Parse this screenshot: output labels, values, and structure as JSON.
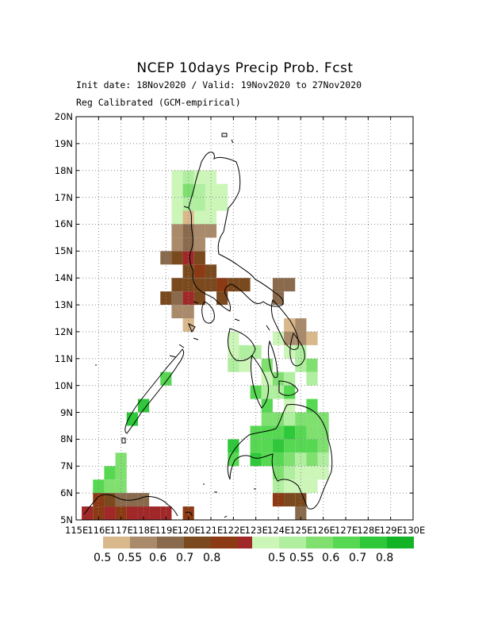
{
  "title": "NCEP 10days Precip Prob. Fcst",
  "init_line": "Init date: 18Nov2020 / Valid: 19Nov2020 to 27Nov2020",
  "calib_line": "Reg Calibrated (GCM-empirical)",
  "y_labels": [
    "20N",
    "19N",
    "18N",
    "17N",
    "16N",
    "15N",
    "14N",
    "13N",
    "12N",
    "11N",
    "10N",
    "9N",
    "8N",
    "7N",
    "6N",
    "5N"
  ],
  "x_labels": [
    "115E",
    "116E",
    "117E",
    "118E",
    "119E",
    "120E",
    "121E",
    "122E",
    "123E",
    "124E",
    "125E",
    "126E",
    "127E",
    "128E",
    "129E",
    "130E"
  ],
  "x_range": [
    115,
    130
  ],
  "y_range": [
    5,
    20
  ],
  "grid": "dotted",
  "dry_legend": {
    "colors": [
      "#d9b88c",
      "#a98a6a",
      "#8a6a4c",
      "#7a4a1e",
      "#8b3a14",
      "#a02828"
    ],
    "labels": [
      "0.5",
      "0.55",
      "0.6",
      "0.7",
      "0.8"
    ]
  },
  "wet_legend": {
    "colors": [
      "#ccf5b8",
      "#b0eea0",
      "#7fe070",
      "#56d852",
      "#2ec83a",
      "#12b426"
    ],
    "labels": [
      "0.5",
      "0.55",
      "0.6",
      "0.7",
      "0.8"
    ]
  },
  "cells": [
    {
      "lon": 119.5,
      "lat": 17.75,
      "cat": "wet",
      "level": 1
    },
    {
      "lon": 120.0,
      "lat": 17.75,
      "cat": "wet",
      "level": 2
    },
    {
      "lon": 120.5,
      "lat": 17.75,
      "cat": "wet",
      "level": 1
    },
    {
      "lon": 121.0,
      "lat": 17.75,
      "cat": "wet",
      "level": 1
    },
    {
      "lon": 119.5,
      "lat": 17.25,
      "cat": "wet",
      "level": 1
    },
    {
      "lon": 120.0,
      "lat": 17.25,
      "cat": "wet",
      "level": 3
    },
    {
      "lon": 120.5,
      "lat": 17.25,
      "cat": "wet",
      "level": 2
    },
    {
      "lon": 121.0,
      "lat": 17.25,
      "cat": "wet",
      "level": 1
    },
    {
      "lon": 121.5,
      "lat": 17.25,
      "cat": "wet",
      "level": 1
    },
    {
      "lon": 119.5,
      "lat": 16.75,
      "cat": "wet",
      "level": 1
    },
    {
      "lon": 120.0,
      "lat": 16.75,
      "cat": "wet",
      "level": 2
    },
    {
      "lon": 120.5,
      "lat": 16.75,
      "cat": "wet",
      "level": 2
    },
    {
      "lon": 121.0,
      "lat": 16.75,
      "cat": "wet",
      "level": 1
    },
    {
      "lon": 121.5,
      "lat": 16.75,
      "cat": "wet",
      "level": 1
    },
    {
      "lon": 119.5,
      "lat": 16.25,
      "cat": "wet",
      "level": 1
    },
    {
      "lon": 120.0,
      "lat": 16.25,
      "cat": "dry",
      "level": 1
    },
    {
      "lon": 120.5,
      "lat": 16.25,
      "cat": "wet",
      "level": 1
    },
    {
      "lon": 121.0,
      "lat": 16.25,
      "cat": "wet",
      "level": 1
    },
    {
      "lon": 119.5,
      "lat": 15.75,
      "cat": "dry",
      "level": 2
    },
    {
      "lon": 120.0,
      "lat": 15.75,
      "cat": "dry",
      "level": 3
    },
    {
      "lon": 120.5,
      "lat": 15.75,
      "cat": "dry",
      "level": 2
    },
    {
      "lon": 121.0,
      "lat": 15.75,
      "cat": "dry",
      "level": 2
    },
    {
      "lon": 119.5,
      "lat": 15.25,
      "cat": "dry",
      "level": 2
    },
    {
      "lon": 120.0,
      "lat": 15.25,
      "cat": "dry",
      "level": 3
    },
    {
      "lon": 120.5,
      "lat": 15.25,
      "cat": "dry",
      "level": 2
    },
    {
      "lon": 119.0,
      "lat": 14.75,
      "cat": "dry",
      "level": 3
    },
    {
      "lon": 119.5,
      "lat": 14.75,
      "cat": "dry",
      "level": 4
    },
    {
      "lon": 120.0,
      "lat": 14.75,
      "cat": "dry",
      "level": 6
    },
    {
      "lon": 120.5,
      "lat": 14.75,
      "cat": "dry",
      "level": 4
    },
    {
      "lon": 120.0,
      "lat": 14.25,
      "cat": "dry",
      "level": 4
    },
    {
      "lon": 120.5,
      "lat": 14.25,
      "cat": "dry",
      "level": 5
    },
    {
      "lon": 121.0,
      "lat": 14.25,
      "cat": "dry",
      "level": 4
    },
    {
      "lon": 119.5,
      "lat": 13.75,
      "cat": "dry",
      "level": 4
    },
    {
      "lon": 120.0,
      "lat": 13.75,
      "cat": "dry",
      "level": 4
    },
    {
      "lon": 120.5,
      "lat": 13.75,
      "cat": "dry",
      "level": 4
    },
    {
      "lon": 121.0,
      "lat": 13.75,
      "cat": "dry",
      "level": 4
    },
    {
      "lon": 121.5,
      "lat": 13.75,
      "cat": "dry",
      "level": 5
    },
    {
      "lon": 122.0,
      "lat": 13.75,
      "cat": "dry",
      "level": 4
    },
    {
      "lon": 122.5,
      "lat": 13.75,
      "cat": "dry",
      "level": 4
    },
    {
      "lon": 119.0,
      "lat": 13.25,
      "cat": "dry",
      "level": 4
    },
    {
      "lon": 119.5,
      "lat": 13.25,
      "cat": "dry",
      "level": 3
    },
    {
      "lon": 120.0,
      "lat": 13.25,
      "cat": "dry",
      "level": 6
    },
    {
      "lon": 120.5,
      "lat": 13.25,
      "cat": "dry",
      "level": 4
    },
    {
      "lon": 121.5,
      "lat": 13.25,
      "cat": "dry",
      "level": 4
    },
    {
      "lon": 119.5,
      "lat": 12.75,
      "cat": "dry",
      "level": 2
    },
    {
      "lon": 120.0,
      "lat": 12.75,
      "cat": "dry",
      "level": 2
    },
    {
      "lon": 120.0,
      "lat": 12.25,
      "cat": "dry",
      "level": 1
    },
    {
      "lon": 124.0,
      "lat": 13.75,
      "cat": "dry",
      "level": 3
    },
    {
      "lon": 124.5,
      "lat": 13.75,
      "cat": "dry",
      "level": 3
    },
    {
      "lon": 124.0,
      "lat": 13.25,
      "cat": "dry",
      "level": 3
    },
    {
      "lon": 124.5,
      "lat": 12.25,
      "cat": "dry",
      "level": 1
    },
    {
      "lon": 125.0,
      "lat": 12.25,
      "cat": "dry",
      "level": 2
    },
    {
      "lon": 124.5,
      "lat": 11.75,
      "cat": "dry",
      "level": 2
    },
    {
      "lon": 125.0,
      "lat": 11.75,
      "cat": "dry",
      "level": 2
    },
    {
      "lon": 125.5,
      "lat": 11.75,
      "cat": "dry",
      "level": 1
    },
    {
      "lon": 122.0,
      "lat": 11.75,
      "cat": "wet",
      "level": 1
    },
    {
      "lon": 124.0,
      "lat": 11.75,
      "cat": "wet",
      "level": 1
    },
    {
      "lon": 122.0,
      "lat": 11.25,
      "cat": "wet",
      "level": 1
    },
    {
      "lon": 122.5,
      "lat": 11.25,
      "cat": "wet",
      "level": 2
    },
    {
      "lon": 123.0,
      "lat": 11.25,
      "cat": "wet",
      "level": 2
    },
    {
      "lon": 124.5,
      "lat": 11.25,
      "cat": "wet",
      "level": 1
    },
    {
      "lon": 125.0,
      "lat": 11.25,
      "cat": "wet",
      "level": 2
    },
    {
      "lon": 122.0,
      "lat": 10.75,
      "cat": "wet",
      "level": 2
    },
    {
      "lon": 122.5,
      "lat": 10.75,
      "cat": "wet",
      "level": 1
    },
    {
      "lon": 123.5,
      "lat": 10.75,
      "cat": "wet",
      "level": 3
    },
    {
      "lon": 125.0,
      "lat": 10.75,
      "cat": "wet",
      "level": 2
    },
    {
      "lon": 125.5,
      "lat": 10.75,
      "cat": "wet",
      "level": 3
    },
    {
      "lon": 123.5,
      "lat": 10.25,
      "cat": "wet",
      "level": 1
    },
    {
      "lon": 124.0,
      "lat": 10.25,
      "cat": "wet",
      "level": 3
    },
    {
      "lon": 124.5,
      "lat": 10.25,
      "cat": "wet",
      "level": 2
    },
    {
      "lon": 125.5,
      "lat": 10.25,
      "cat": "wet",
      "level": 2
    },
    {
      "lon": 123.0,
      "lat": 9.75,
      "cat": "wet",
      "level": 4
    },
    {
      "lon": 123.5,
      "lat": 9.75,
      "cat": "wet",
      "level": 2
    },
    {
      "lon": 124.0,
      "lat": 9.75,
      "cat": "wet",
      "level": 2
    },
    {
      "lon": 124.5,
      "lat": 9.75,
      "cat": "wet",
      "level": 4
    },
    {
      "lon": 123.5,
      "lat": 9.25,
      "cat": "wet",
      "level": 4
    },
    {
      "lon": 124.5,
      "lat": 9.25,
      "cat": "wet",
      "level": 1
    },
    {
      "lon": 125.5,
      "lat": 9.25,
      "cat": "wet",
      "level": 4
    },
    {
      "lon": 123.5,
      "lat": 8.75,
      "cat": "wet",
      "level": 3
    },
    {
      "lon": 124.0,
      "lat": 8.75,
      "cat": "wet",
      "level": 3
    },
    {
      "lon": 124.5,
      "lat": 8.75,
      "cat": "wet",
      "level": 2
    },
    {
      "lon": 125.0,
      "lat": 8.75,
      "cat": "wet",
      "level": 3
    },
    {
      "lon": 125.5,
      "lat": 8.75,
      "cat": "wet",
      "level": 3
    },
    {
      "lon": 126.0,
      "lat": 8.75,
      "cat": "wet",
      "level": 3
    },
    {
      "lon": 123.0,
      "lat": 8.25,
      "cat": "wet",
      "level": 4
    },
    {
      "lon": 123.5,
      "lat": 8.25,
      "cat": "wet",
      "level": 4
    },
    {
      "lon": 124.0,
      "lat": 8.25,
      "cat": "wet",
      "level": 4
    },
    {
      "lon": 124.5,
      "lat": 8.25,
      "cat": "wet",
      "level": 5
    },
    {
      "lon": 125.0,
      "lat": 8.25,
      "cat": "wet",
      "level": 4
    },
    {
      "lon": 125.5,
      "lat": 8.25,
      "cat": "wet",
      "level": 3
    },
    {
      "lon": 126.0,
      "lat": 8.25,
      "cat": "wet",
      "level": 3
    },
    {
      "lon": 122.0,
      "lat": 7.75,
      "cat": "wet",
      "level": 5
    },
    {
      "lon": 123.0,
      "lat": 7.75,
      "cat": "wet",
      "level": 4
    },
    {
      "lon": 123.5,
      "lat": 7.75,
      "cat": "wet",
      "level": 4
    },
    {
      "lon": 124.0,
      "lat": 7.75,
      "cat": "wet",
      "level": 5
    },
    {
      "lon": 124.5,
      "lat": 7.75,
      "cat": "wet",
      "level": 4
    },
    {
      "lon": 125.0,
      "lat": 7.75,
      "cat": "wet",
      "level": 4
    },
    {
      "lon": 125.5,
      "lat": 7.75,
      "cat": "wet",
      "level": 4
    },
    {
      "lon": 126.0,
      "lat": 7.75,
      "cat": "wet",
      "level": 3
    },
    {
      "lon": 122.0,
      "lat": 7.25,
      "cat": "wet",
      "level": 4
    },
    {
      "lon": 123.0,
      "lat": 7.25,
      "cat": "wet",
      "level": 5
    },
    {
      "lon": 123.5,
      "lat": 7.25,
      "cat": "wet",
      "level": 4
    },
    {
      "lon": 124.0,
      "lat": 7.25,
      "cat": "wet",
      "level": 4
    },
    {
      "lon": 124.5,
      "lat": 7.25,
      "cat": "wet",
      "level": 3
    },
    {
      "lon": 125.0,
      "lat": 7.25,
      "cat": "wet",
      "level": 2
    },
    {
      "lon": 125.5,
      "lat": 7.25,
      "cat": "wet",
      "level": 3
    },
    {
      "lon": 126.0,
      "lat": 7.25,
      "cat": "wet",
      "level": 2
    },
    {
      "lon": 124.0,
      "lat": 6.75,
      "cat": "wet",
      "level": 3
    },
    {
      "lon": 124.5,
      "lat": 6.75,
      "cat": "wet",
      "level": 2
    },
    {
      "lon": 125.0,
      "lat": 6.75,
      "cat": "wet",
      "level": 1
    },
    {
      "lon": 125.5,
      "lat": 6.75,
      "cat": "wet",
      "level": 1
    },
    {
      "lon": 126.0,
      "lat": 6.75,
      "cat": "wet",
      "level": 1
    },
    {
      "lon": 124.0,
      "lat": 6.25,
      "cat": "wet",
      "level": 2
    },
    {
      "lon": 124.5,
      "lat": 6.25,
      "cat": "wet",
      "level": 1
    },
    {
      "lon": 125.0,
      "lat": 6.25,
      "cat": "wet",
      "level": 1
    },
    {
      "lon": 125.5,
      "lat": 6.25,
      "cat": "wet",
      "level": 1
    },
    {
      "lon": 124.0,
      "lat": 5.75,
      "cat": "dry",
      "level": 5
    },
    {
      "lon": 124.5,
      "lat": 5.75,
      "cat": "dry",
      "level": 4
    },
    {
      "lon": 125.0,
      "lat": 5.75,
      "cat": "dry",
      "level": 4
    },
    {
      "lon": 125.0,
      "lat": 5.25,
      "cat": "dry",
      "level": 3
    },
    {
      "lon": 119.0,
      "lat": 10.25,
      "cat": "wet",
      "level": 4
    },
    {
      "lon": 118.0,
      "lat": 9.25,
      "cat": "wet",
      "level": 5
    },
    {
      "lon": 117.5,
      "lat": 8.75,
      "cat": "wet",
      "level": 5
    },
    {
      "lon": 117.0,
      "lat": 7.25,
      "cat": "wet",
      "level": 3
    },
    {
      "lon": 116.5,
      "lat": 6.75,
      "cat": "wet",
      "level": 4
    },
    {
      "lon": 117.0,
      "lat": 6.75,
      "cat": "wet",
      "level": 3
    },
    {
      "lon": 116.0,
      "lat": 6.25,
      "cat": "wet",
      "level": 4
    },
    {
      "lon": 116.5,
      "lat": 6.25,
      "cat": "wet",
      "level": 3
    },
    {
      "lon": 117.0,
      "lat": 6.25,
      "cat": "wet",
      "level": 3
    },
    {
      "lon": 116.0,
      "lat": 5.75,
      "cat": "dry",
      "level": 5
    },
    {
      "lon": 116.5,
      "lat": 5.75,
      "cat": "dry",
      "level": 4
    },
    {
      "lon": 117.0,
      "lat": 5.75,
      "cat": "dry",
      "level": 3
    },
    {
      "lon": 116.0,
      "lat": 5.25,
      "cat": "dry",
      "level": 5
    },
    {
      "lon": 116.5,
      "lat": 5.25,
      "cat": "dry",
      "level": 6
    },
    {
      "lon": 117.0,
      "lat": 5.25,
      "cat": "dry",
      "level": 5
    },
    {
      "lon": 117.5,
      "lat": 5.75,
      "cat": "dry",
      "level": 3
    },
    {
      "lon": 118.0,
      "lat": 5.75,
      "cat": "dry",
      "level": 3
    },
    {
      "lon": 115.5,
      "lat": 5.25,
      "cat": "dry",
      "level": 6
    },
    {
      "lon": 117.5,
      "lat": 5.25,
      "cat": "dry",
      "level": 6
    },
    {
      "lon": 118.0,
      "lat": 5.25,
      "cat": "dry",
      "level": 6
    },
    {
      "lon": 118.5,
      "lat": 5.25,
      "cat": "dry",
      "level": 6
    },
    {
      "lon": 119.0,
      "lat": 5.25,
      "cat": "dry",
      "level": 6
    },
    {
      "lon": 120.0,
      "lat": 5.25,
      "cat": "dry",
      "level": 5
    }
  ]
}
